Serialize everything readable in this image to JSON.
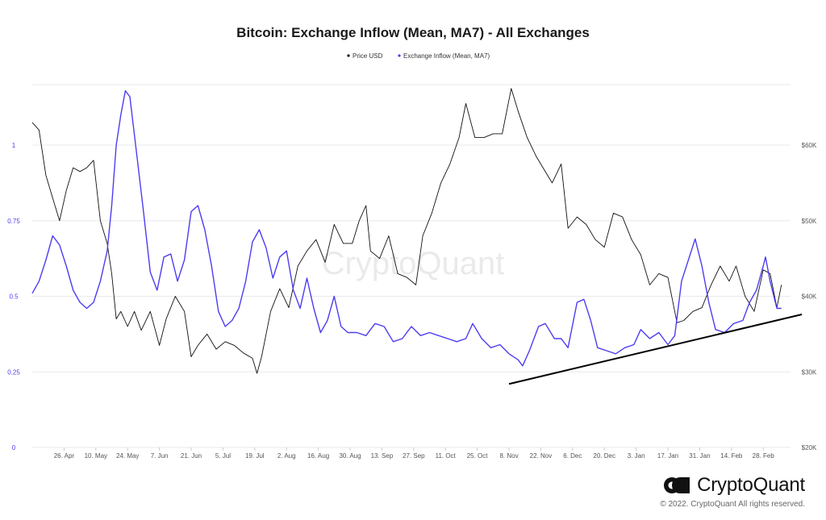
{
  "chart_data": {
    "type": "line",
    "title": "Bitcoin: Exchange Inflow (Mean, MA7) - All Exchanges",
    "watermark": "CryptoQuant",
    "legend": [
      {
        "name": "Price USD",
        "color": "#111111"
      },
      {
        "name": "Exchange Inflow (Mean, MA7)",
        "color": "#4d3df0"
      }
    ],
    "legend_position": "top-center",
    "x_ticks": [
      "26. Apr",
      "10. May",
      "24. May",
      "7. Jun",
      "21. Jun",
      "5. Jul",
      "19. Jul",
      "2. Aug",
      "16. Aug",
      "30. Aug",
      "13. Sep",
      "27. Sep",
      "11. Oct",
      "25. Oct",
      "8. Nov",
      "22. Nov",
      "6. Dec",
      "20. Dec",
      "3. Jan",
      "17. Jan",
      "31. Jan",
      "14. Feb",
      "28. Feb"
    ],
    "y_left": {
      "ticks": [
        "0",
        "0.25",
        "0.5",
        "0.75",
        "1"
      ],
      "range": [
        0,
        1.2
      ]
    },
    "y_right": {
      "ticks": [
        "$20K",
        "$30K",
        "$40K",
        "$50K",
        "$60K"
      ],
      "range": [
        20000,
        68000
      ]
    },
    "grid": "horizontal",
    "series": [
      {
        "name": "Price USD",
        "axis": "right",
        "color": "#111111",
        "points": [
          [
            "2021-04-12",
            63000
          ],
          [
            "2021-04-15",
            62000
          ],
          [
            "2021-04-18",
            56000
          ],
          [
            "2021-04-21",
            53000
          ],
          [
            "2021-04-24",
            50000
          ],
          [
            "2021-04-27",
            54000
          ],
          [
            "2021-04-30",
            57000
          ],
          [
            "2021-05-03",
            56500
          ],
          [
            "2021-05-06",
            57000
          ],
          [
            "2021-05-09",
            58000
          ],
          [
            "2021-05-12",
            50000
          ],
          [
            "2021-05-15",
            47000
          ],
          [
            "2021-05-17",
            43000
          ],
          [
            "2021-05-19",
            37000
          ],
          [
            "2021-05-21",
            38000
          ],
          [
            "2021-05-24",
            36000
          ],
          [
            "2021-05-27",
            38000
          ],
          [
            "2021-05-30",
            35500
          ],
          [
            "2021-06-03",
            38000
          ],
          [
            "2021-06-07",
            33500
          ],
          [
            "2021-06-10",
            37000
          ],
          [
            "2021-06-14",
            40000
          ],
          [
            "2021-06-18",
            38000
          ],
          [
            "2021-06-21",
            32000
          ],
          [
            "2021-06-24",
            33500
          ],
          [
            "2021-06-28",
            35000
          ],
          [
            "2021-07-02",
            33000
          ],
          [
            "2021-07-06",
            34000
          ],
          [
            "2021-07-10",
            33500
          ],
          [
            "2021-07-14",
            32500
          ],
          [
            "2021-07-18",
            31800
          ],
          [
            "2021-07-20",
            29800
          ],
          [
            "2021-07-22",
            32000
          ],
          [
            "2021-07-26",
            38000
          ],
          [
            "2021-07-30",
            41000
          ],
          [
            "2021-08-03",
            38500
          ],
          [
            "2021-08-07",
            44000
          ],
          [
            "2021-08-11",
            46000
          ],
          [
            "2021-08-15",
            47500
          ],
          [
            "2021-08-19",
            44500
          ],
          [
            "2021-08-23",
            49500
          ],
          [
            "2021-08-27",
            47000
          ],
          [
            "2021-08-31",
            47000
          ],
          [
            "2021-09-03",
            50000
          ],
          [
            "2021-09-06",
            52000
          ],
          [
            "2021-09-08",
            46000
          ],
          [
            "2021-09-12",
            45000
          ],
          [
            "2021-09-16",
            48000
          ],
          [
            "2021-09-20",
            43000
          ],
          [
            "2021-09-24",
            42500
          ],
          [
            "2021-09-28",
            41500
          ],
          [
            "2021-10-01",
            48000
          ],
          [
            "2021-10-05",
            51000
          ],
          [
            "2021-10-09",
            55000
          ],
          [
            "2021-10-13",
            57500
          ],
          [
            "2021-10-17",
            61000
          ],
          [
            "2021-10-20",
            65500
          ],
          [
            "2021-10-24",
            61000
          ],
          [
            "2021-10-28",
            61000
          ],
          [
            "2021-11-01",
            61500
          ],
          [
            "2021-11-05",
            61500
          ],
          [
            "2021-11-09",
            67500
          ],
          [
            "2021-11-12",
            64500
          ],
          [
            "2021-11-16",
            61000
          ],
          [
            "2021-11-20",
            58500
          ],
          [
            "2021-11-23",
            57000
          ],
          [
            "2021-11-27",
            55000
          ],
          [
            "2021-12-01",
            57500
          ],
          [
            "2021-12-04",
            49000
          ],
          [
            "2021-12-08",
            50500
          ],
          [
            "2021-12-12",
            49500
          ],
          [
            "2021-12-16",
            47500
          ],
          [
            "2021-12-20",
            46500
          ],
          [
            "2021-12-24",
            51000
          ],
          [
            "2021-12-28",
            50500
          ],
          [
            "2022-01-01",
            47500
          ],
          [
            "2022-01-05",
            45500
          ],
          [
            "2022-01-09",
            41500
          ],
          [
            "2022-01-13",
            43000
          ],
          [
            "2022-01-17",
            42500
          ],
          [
            "2022-01-21",
            36500
          ],
          [
            "2022-01-24",
            36800
          ],
          [
            "2022-01-28",
            38000
          ],
          [
            "2022-02-01",
            38500
          ],
          [
            "2022-02-05",
            41500
          ],
          [
            "2022-02-09",
            44000
          ],
          [
            "2022-02-13",
            42000
          ],
          [
            "2022-02-16",
            44000
          ],
          [
            "2022-02-20",
            40000
          ],
          [
            "2022-02-24",
            38000
          ],
          [
            "2022-02-28",
            43500
          ],
          [
            "2022-03-03",
            43000
          ],
          [
            "2022-03-06",
            38500
          ],
          [
            "2022-03-08",
            41500
          ]
        ]
      },
      {
        "name": "Exchange Inflow (Mean, MA7)",
        "axis": "left",
        "color": "#4d3df0",
        "points": [
          [
            "2021-04-12",
            0.51
          ],
          [
            "2021-04-15",
            0.55
          ],
          [
            "2021-04-18",
            0.62
          ],
          [
            "2021-04-21",
            0.7
          ],
          [
            "2021-04-24",
            0.67
          ],
          [
            "2021-04-27",
            0.6
          ],
          [
            "2021-04-30",
            0.52
          ],
          [
            "2021-05-03",
            0.48
          ],
          [
            "2021-05-06",
            0.46
          ],
          [
            "2021-05-09",
            0.48
          ],
          [
            "2021-05-12",
            0.55
          ],
          [
            "2021-05-15",
            0.65
          ],
          [
            "2021-05-17",
            0.8
          ],
          [
            "2021-05-19",
            1.0
          ],
          [
            "2021-05-21",
            1.1
          ],
          [
            "2021-05-23",
            1.18
          ],
          [
            "2021-05-25",
            1.16
          ],
          [
            "2021-05-28",
            0.97
          ],
          [
            "2021-05-31",
            0.78
          ],
          [
            "2021-06-03",
            0.58
          ],
          [
            "2021-06-06",
            0.52
          ],
          [
            "2021-06-09",
            0.63
          ],
          [
            "2021-06-12",
            0.64
          ],
          [
            "2021-06-15",
            0.55
          ],
          [
            "2021-06-18",
            0.62
          ],
          [
            "2021-06-21",
            0.78
          ],
          [
            "2021-06-24",
            0.8
          ],
          [
            "2021-06-27",
            0.72
          ],
          [
            "2021-06-30",
            0.6
          ],
          [
            "2021-07-03",
            0.45
          ],
          [
            "2021-07-06",
            0.4
          ],
          [
            "2021-07-09",
            0.42
          ],
          [
            "2021-07-12",
            0.46
          ],
          [
            "2021-07-15",
            0.55
          ],
          [
            "2021-07-18",
            0.68
          ],
          [
            "2021-07-21",
            0.72
          ],
          [
            "2021-07-24",
            0.66
          ],
          [
            "2021-07-27",
            0.56
          ],
          [
            "2021-07-30",
            0.63
          ],
          [
            "2021-08-02",
            0.65
          ],
          [
            "2021-08-05",
            0.52
          ],
          [
            "2021-08-08",
            0.46
          ],
          [
            "2021-08-11",
            0.56
          ],
          [
            "2021-08-14",
            0.46
          ],
          [
            "2021-08-17",
            0.38
          ],
          [
            "2021-08-20",
            0.42
          ],
          [
            "2021-08-23",
            0.5
          ],
          [
            "2021-08-26",
            0.4
          ],
          [
            "2021-08-29",
            0.38
          ],
          [
            "2021-09-02",
            0.38
          ],
          [
            "2021-09-06",
            0.37
          ],
          [
            "2021-09-10",
            0.41
          ],
          [
            "2021-09-14",
            0.4
          ],
          [
            "2021-09-18",
            0.35
          ],
          [
            "2021-09-22",
            0.36
          ],
          [
            "2021-09-26",
            0.4
          ],
          [
            "2021-09-30",
            0.37
          ],
          [
            "2021-10-04",
            0.38
          ],
          [
            "2021-10-08",
            0.37
          ],
          [
            "2021-10-12",
            0.36
          ],
          [
            "2021-10-16",
            0.35
          ],
          [
            "2021-10-20",
            0.36
          ],
          [
            "2021-10-23",
            0.41
          ],
          [
            "2021-10-27",
            0.36
          ],
          [
            "2021-10-31",
            0.33
          ],
          [
            "2021-11-04",
            0.34
          ],
          [
            "2021-11-08",
            0.31
          ],
          [
            "2021-11-12",
            0.29
          ],
          [
            "2021-11-14",
            0.27
          ],
          [
            "2021-11-17",
            0.32
          ],
          [
            "2021-11-21",
            0.4
          ],
          [
            "2021-11-24",
            0.41
          ],
          [
            "2021-11-28",
            0.36
          ],
          [
            "2021-12-01",
            0.36
          ],
          [
            "2021-12-04",
            0.33
          ],
          [
            "2021-12-08",
            0.48
          ],
          [
            "2021-12-11",
            0.49
          ],
          [
            "2021-12-14",
            0.42
          ],
          [
            "2021-12-17",
            0.33
          ],
          [
            "2021-12-21",
            0.32
          ],
          [
            "2021-12-25",
            0.31
          ],
          [
            "2021-12-29",
            0.33
          ],
          [
            "2022-01-02",
            0.34
          ],
          [
            "2022-01-05",
            0.39
          ],
          [
            "2022-01-09",
            0.36
          ],
          [
            "2022-01-13",
            0.38
          ],
          [
            "2022-01-17",
            0.34
          ],
          [
            "2022-01-20",
            0.37
          ],
          [
            "2022-01-23",
            0.55
          ],
          [
            "2022-01-26",
            0.62
          ],
          [
            "2022-01-29",
            0.69
          ],
          [
            "2022-02-01",
            0.6
          ],
          [
            "2022-02-04",
            0.48
          ],
          [
            "2022-02-07",
            0.39
          ],
          [
            "2022-02-11",
            0.38
          ],
          [
            "2022-02-15",
            0.41
          ],
          [
            "2022-02-19",
            0.42
          ],
          [
            "2022-02-22",
            0.48
          ],
          [
            "2022-02-25",
            0.52
          ],
          [
            "2022-02-28",
            0.6
          ],
          [
            "2022-03-01",
            0.63
          ],
          [
            "2022-03-03",
            0.55
          ],
          [
            "2022-03-06",
            0.46
          ],
          [
            "2022-03-08",
            0.46
          ]
        ]
      }
    ],
    "annotations": [
      {
        "type": "trendline",
        "axis": "left",
        "from": [
          "2021-11-08",
          0.21
        ],
        "to": [
          "2022-03-17",
          0.44
        ]
      }
    ]
  },
  "footer": {
    "brand": "CryptoQuant",
    "copyright": "© 2022. CryptoQuant All rights reserved."
  }
}
